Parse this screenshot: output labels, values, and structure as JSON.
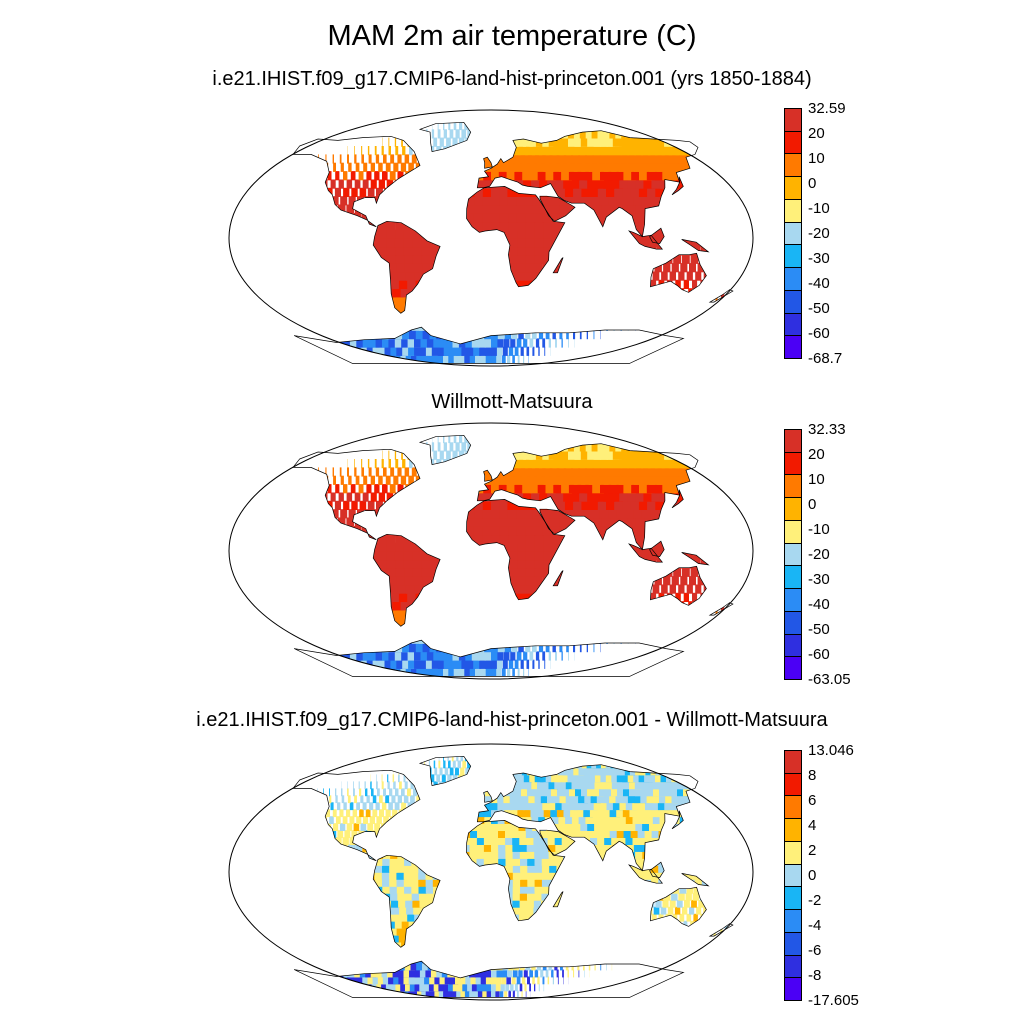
{
  "title": "MAM 2m air temperature (C)",
  "panels": [
    {
      "title": "i.e21.IHIST.f09_g17.CMIP6-land-hist-princeton.001 (yrs 1850-1884)",
      "kind": "absolute",
      "colorbar": {
        "labels": [
          "32.59",
          "20",
          "10",
          "0",
          "-10",
          "-20",
          "-30",
          "-40",
          "-50",
          "-60",
          "-68.7"
        ],
        "colors": [
          "#d73027",
          "#f21a00",
          "#ff7a00",
          "#ffb300",
          "#fff07a",
          "#a8d8f0",
          "#19b5f5",
          "#2b8cf5",
          "#2257e6",
          "#2f2fe0",
          "#4b00f5"
        ]
      }
    },
    {
      "title": "Willmott-Matsuura",
      "kind": "absolute",
      "colorbar": {
        "labels": [
          "32.33",
          "20",
          "10",
          "0",
          "-10",
          "-20",
          "-30",
          "-40",
          "-50",
          "-60",
          "-63.05"
        ],
        "colors": [
          "#d73027",
          "#f21a00",
          "#ff7a00",
          "#ffb300",
          "#fff07a",
          "#a8d8f0",
          "#19b5f5",
          "#2b8cf5",
          "#2257e6",
          "#2f2fe0",
          "#4b00f5"
        ]
      }
    },
    {
      "title": "i.e21.IHIST.f09_g17.CMIP6-land-hist-princeton.001 - Willmott-Matsuura",
      "kind": "difference",
      "colorbar": {
        "labels": [
          "13.046",
          "8",
          "6",
          "4",
          "2",
          "0",
          "-2",
          "-4",
          "-6",
          "-8",
          "-17.605"
        ],
        "colors": [
          "#d73027",
          "#f21a00",
          "#ff7a00",
          "#ffb300",
          "#fff07a",
          "#a8d8f0",
          "#19b5f5",
          "#2b8cf5",
          "#2257e6",
          "#2f2fe0",
          "#4b00f5"
        ]
      }
    }
  ]
}
